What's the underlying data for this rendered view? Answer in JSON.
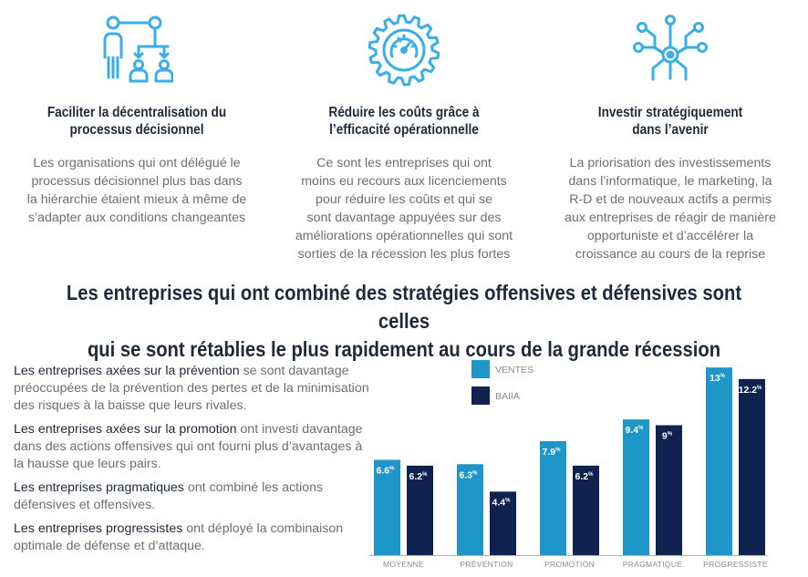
{
  "columns": [
    {
      "icon": "hierarchy-people-icon",
      "title_lines": [
        "Faciliter la décentralisation du",
        "processus décisionnel"
      ],
      "text_lines": [
        "Les organisations qui ont délégué le",
        "processus décisionnel plus bas dans",
        "la hiérarchie étaient mieux à même de",
        "s’adapter aux conditions changeantes"
      ]
    },
    {
      "icon": "gear-gauge-icon",
      "title_lines": [
        "Réduire les coûts grâce à",
        "l’efficacité opérationnelle"
      ],
      "text_lines": [
        "Ce sont les entreprises qui ont",
        "moins eu recours aux licenciements",
        "pour réduire les coûts et qui se",
        "sont davantage appuyées sur des",
        "améliorations opérationnelles qui sont",
        "sorties de la récession les plus fortes"
      ]
    },
    {
      "icon": "network-hub-icon",
      "title_lines": [
        "Investir stratégiquement",
        "dans l’avenir"
      ],
      "text_lines": [
        "La priorisation des investissements",
        "dans l’informatique, le marketing, la",
        "R-D et de nouveaux actifs a permis",
        "aux entreprises de réagir de manière",
        "opportuniste et d’accélérer la",
        "croissance au cours de la reprise"
      ]
    }
  ],
  "headline_lines": [
    "Les entreprises qui ont combiné des stratégies offensives et défensives sont celles",
    "qui se sont rétablies le plus rapidement au cours de la grande récession"
  ],
  "descriptions": [
    {
      "strong": "Les entreprises axées sur la prévention",
      "rest": " se sont davantage préoccupées de la prévention des pertes et de la minimisation des risques à la baisse que leurs rivales."
    },
    {
      "strong": "Les entreprises axées sur la promotion",
      "rest": " ont investi davantage dans des actions offensives qui ont fourni plus d’avantages à la hausse que leurs pairs."
    },
    {
      "strong": "Les entreprises pragmatiques",
      "rest": " ont combiné les actions défensives et offensives."
    },
    {
      "strong": "Les entreprises progressistes",
      "rest": " ont déployé la combinaison optimale de défense et d’attaque."
    }
  ],
  "colors": {
    "accent": "#1e96c8",
    "dark": "#0f2250",
    "icon": "#3aaee6",
    "title": "#1e2a3a",
    "text": "#6e6e6e"
  },
  "chart_data": {
    "type": "bar",
    "categories": [
      "MOYENNE",
      "PRÉVENTION",
      "PROMOTION",
      "PRAGMATIQUE",
      "PROGRESSISTE"
    ],
    "series": [
      {
        "name": "VENTES",
        "values": [
          6.6,
          6.3,
          7.9,
          9.4,
          13
        ],
        "labels": [
          "6.6",
          "6.3",
          "7.9",
          "9.4",
          "13"
        ],
        "color": "#1e96c8"
      },
      {
        "name": "BAIIA",
        "values": [
          6.2,
          4.4,
          6.2,
          9,
          12.2
        ],
        "labels": [
          "6.2",
          "4.4",
          "6.2",
          "9",
          "12.2"
        ],
        "color": "#0f2250"
      }
    ],
    "value_suffix": "%",
    "legend": "top-left",
    "grid": false
  }
}
